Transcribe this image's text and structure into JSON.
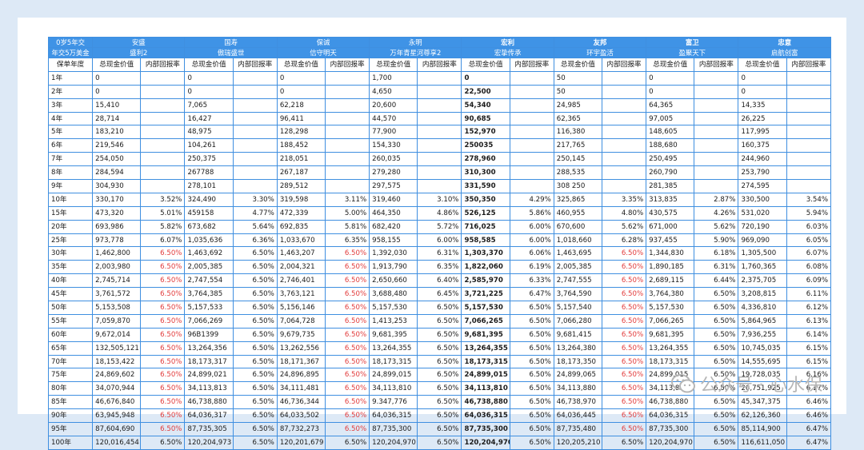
{
  "header": {
    "corner_line1": "0岁5年交",
    "corner_line2": "年交5万美金",
    "year_label": "保单年度",
    "metric_cash": "总现金价值",
    "metric_irr": "内部回报率",
    "companies": [
      {
        "company": "安盛",
        "product": "盛利2",
        "bold": false
      },
      {
        "company": "国寿",
        "product": "傲瑞盛世",
        "bold": false
      },
      {
        "company": "保诚",
        "product": "信守明天",
        "bold": false
      },
      {
        "company": "永明",
        "product": "万年青星河尊享2",
        "bold": false
      },
      {
        "company": "宏利",
        "product": "宏挚传承",
        "bold": true
      },
      {
        "company": "友邦",
        "product": "环宇盈活",
        "bold": true
      },
      {
        "company": "富卫",
        "product": "盈聚天下",
        "bold": true
      },
      {
        "company": "忠意",
        "product": "启航创富",
        "bold": true
      }
    ]
  },
  "rows": [
    {
      "year": "1年",
      "cells": [
        [
          "0",
          ""
        ],
        [
          "0",
          ""
        ],
        [
          "0",
          ""
        ],
        [
          "1,700",
          ""
        ],
        [
          "0",
          ""
        ],
        [
          "50",
          ""
        ],
        [
          "0",
          ""
        ],
        [
          "0",
          ""
        ]
      ]
    },
    {
      "year": "2年",
      "cells": [
        [
          "0",
          ""
        ],
        [
          "0",
          ""
        ],
        [
          "0",
          ""
        ],
        [
          "4,650",
          ""
        ],
        [
          "22,500",
          ""
        ],
        [
          "50",
          ""
        ],
        [
          "0",
          ""
        ],
        [
          "0",
          ""
        ]
      ]
    },
    {
      "year": "3年",
      "cells": [
        [
          "15,410",
          ""
        ],
        [
          "7,065",
          ""
        ],
        [
          "62,218",
          ""
        ],
        [
          "20,600",
          ""
        ],
        [
          "54,340",
          ""
        ],
        [
          "24,985",
          ""
        ],
        [
          "64,365",
          ""
        ],
        [
          "14,335",
          ""
        ]
      ]
    },
    {
      "year": "4年",
      "cells": [
        [
          "28,714",
          ""
        ],
        [
          "16,427",
          ""
        ],
        [
          "96,411",
          ""
        ],
        [
          "44,570",
          ""
        ],
        [
          "90,685",
          ""
        ],
        [
          "62,365",
          ""
        ],
        [
          "97,005",
          ""
        ],
        [
          "26,225",
          ""
        ]
      ]
    },
    {
      "year": "5年",
      "cells": [
        [
          "183,210",
          ""
        ],
        [
          "48,975",
          ""
        ],
        [
          "128,298",
          ""
        ],
        [
          "77,900",
          ""
        ],
        [
          "152,970",
          ""
        ],
        [
          "116,380",
          ""
        ],
        [
          "148,605",
          ""
        ],
        [
          "117,995",
          ""
        ]
      ]
    },
    {
      "year": "6年",
      "cells": [
        [
          "219,546",
          ""
        ],
        [
          "104,261",
          ""
        ],
        [
          "188,452",
          ""
        ],
        [
          "154,330",
          ""
        ],
        [
          "250035",
          ""
        ],
        [
          "217,765",
          ""
        ],
        [
          "188,680",
          ""
        ],
        [
          "160,375",
          ""
        ]
      ]
    },
    {
      "year": "7年",
      "cells": [
        [
          "254,050",
          ""
        ],
        [
          "250,375",
          ""
        ],
        [
          "218,051",
          ""
        ],
        [
          "260,035",
          ""
        ],
        [
          "278,960",
          ""
        ],
        [
          "250,145",
          ""
        ],
        [
          "250,495",
          ""
        ],
        [
          "244,960",
          ""
        ]
      ]
    },
    {
      "year": "8年",
      "cells": [
        [
          "284,594",
          ""
        ],
        [
          "267788",
          ""
        ],
        [
          "267,187",
          ""
        ],
        [
          "279,280",
          ""
        ],
        [
          "310,300",
          ""
        ],
        [
          "288,535",
          ""
        ],
        [
          "260,790",
          ""
        ],
        [
          "253,790",
          ""
        ]
      ]
    },
    {
      "year": "9年",
      "cells": [
        [
          "304,930",
          ""
        ],
        [
          "278,101",
          ""
        ],
        [
          "289,512",
          ""
        ],
        [
          "297,575",
          ""
        ],
        [
          "331,590",
          ""
        ],
        [
          "308 250",
          ""
        ],
        [
          "281,385",
          ""
        ],
        [
          "274,595",
          ""
        ]
      ]
    },
    {
      "year": "10年",
      "cells": [
        [
          "330,170",
          "3.52%"
        ],
        [
          "324,490",
          "3.30%"
        ],
        [
          "319,598",
          "3.11%"
        ],
        [
          "319,460",
          "3.10%"
        ],
        [
          "350,350",
          "4.29%"
        ],
        [
          "325,865",
          "3.35%"
        ],
        [
          "313,835",
          "2.87%"
        ],
        [
          "330,500",
          "3.54%"
        ]
      ]
    },
    {
      "year": "15年",
      "cells": [
        [
          "473,320",
          "5.01%"
        ],
        [
          "459158",
          "4.77%"
        ],
        [
          "472,339",
          "5.00%"
        ],
        [
          "464,350",
          "4.86%"
        ],
        [
          "526,125",
          "5.86%"
        ],
        [
          "460,955",
          "4.80%"
        ],
        [
          "430,575",
          "4.26%"
        ],
        [
          "531,020",
          "5.94%"
        ]
      ]
    },
    {
      "year": "20年",
      "cells": [
        [
          "693,986",
          "5.82%"
        ],
        [
          "673,682",
          "5.64%"
        ],
        [
          "692,835",
          "5.81%"
        ],
        [
          "682,420",
          "5.72%"
        ],
        [
          "716,025",
          "6.00%"
        ],
        [
          "670,600",
          "5.62%"
        ],
        [
          "671,000",
          "5.62%"
        ],
        [
          "720,190",
          "6.03%"
        ]
      ]
    },
    {
      "year": "25年",
      "cells": [
        [
          "973,778",
          "6.07%"
        ],
        [
          "1,035,636",
          "6.36%"
        ],
        [
          "1,033,670",
          "6.35%"
        ],
        [
          "958,155",
          "6.00%"
        ],
        [
          "958,585",
          "6.00%"
        ],
        [
          "1,018,660",
          "6.28%"
        ],
        [
          "937,455",
          "5.90%"
        ],
        [
          "969,090",
          "6.05%"
        ]
      ]
    },
    {
      "year": "30年",
      "cells": [
        [
          "1,462,800",
          "6.50%"
        ],
        [
          "1,463,692",
          "6.50%"
        ],
        [
          "1,463,207",
          "6.50%"
        ],
        [
          "1,392,030",
          "6.31%"
        ],
        [
          "1,303,370",
          "6.06%"
        ],
        [
          "1,463,695",
          "6.50%"
        ],
        [
          "1,344,830",
          "6.18%"
        ],
        [
          "1,305,500",
          "6.07%"
        ]
      ]
    },
    {
      "year": "35年",
      "cells": [
        [
          "2,003,980",
          "6.50%"
        ],
        [
          "2,005,385",
          "6.50%"
        ],
        [
          "2,004,321",
          "6.50%"
        ],
        [
          "1,913,790",
          "6.35%"
        ],
        [
          "1,822,060",
          "6.19%"
        ],
        [
          "2,005,385",
          "6.50%"
        ],
        [
          "1,890,185",
          "6.31%"
        ],
        [
          "1,760,365",
          "6.08%"
        ]
      ]
    },
    {
      "year": "40年",
      "cells": [
        [
          "2,745,714",
          "6.50%"
        ],
        [
          "2,747,554",
          "6.50%"
        ],
        [
          "2,746,401",
          "6.50%"
        ],
        [
          "2,650,660",
          "6.40%"
        ],
        [
          "2,585,970",
          "6.33%"
        ],
        [
          "2,747,555",
          "6.50%"
        ],
        [
          "2,689,115",
          "6.44%"
        ],
        [
          "2,375,705",
          "6.09%"
        ]
      ]
    },
    {
      "year": "45年",
      "cells": [
        [
          "3,761,572",
          "6.50%"
        ],
        [
          "3,764,385",
          "6.50%"
        ],
        [
          "3,763,121",
          "6.50%"
        ],
        [
          "3,688,480",
          "6.45%"
        ],
        [
          "3,721,225",
          "6.47%"
        ],
        [
          "3,764,590",
          "6.50%"
        ],
        [
          "3,764,380",
          "6.50%"
        ],
        [
          "3,208,815",
          "6.11%"
        ]
      ]
    },
    {
      "year": "50年",
      "cells": [
        [
          "5,153,508",
          "6.50%"
        ],
        [
          "5,157,533",
          "6.50%"
        ],
        [
          "5,156,146",
          "6.50%"
        ],
        [
          "5,157,530",
          "6.50%"
        ],
        [
          "5,157,530",
          "6.50%"
        ],
        [
          "5,157,540",
          "6.50%"
        ],
        [
          "5,157,530",
          "6.50%"
        ],
        [
          "4,336,810",
          "6.12%"
        ]
      ]
    },
    {
      "year": "55年",
      "cells": [
        [
          "7,059,870",
          "6.50%"
        ],
        [
          "7,066,269",
          "6.50%"
        ],
        [
          "7,064,728",
          "6.50%"
        ],
        [
          "1,413,253",
          "6.50%"
        ],
        [
          "7,066,265",
          "6.50%"
        ],
        [
          "7,066,280",
          "6.50%"
        ],
        [
          "7,066,265",
          "6.50%"
        ],
        [
          "5,864,965",
          "6.13%"
        ]
      ]
    },
    {
      "year": "60年",
      "cells": [
        [
          "9,672,014",
          "6.50%"
        ],
        [
          "96B1399",
          "6.50%"
        ],
        [
          "9,679,735",
          "6.50%"
        ],
        [
          "9,681,395",
          "6.50%"
        ],
        [
          "9,681,395",
          "6.50%"
        ],
        [
          "9,681,415",
          "6.50%"
        ],
        [
          "9,681,395",
          "6.50%"
        ],
        [
          "7,936,255",
          "6.14%"
        ]
      ]
    },
    {
      "year": "65年",
      "cells": [
        [
          "132,505,121",
          "6.50%"
        ],
        [
          "13,264,356",
          "6.50%"
        ],
        [
          "13,262,556",
          "6.50%"
        ],
        [
          "13,264,355",
          "6.50%"
        ],
        [
          "13,264,355",
          "6.50%"
        ],
        [
          "13,264,380",
          "6.50%"
        ],
        [
          "13,264,355",
          "6.50%"
        ],
        [
          "10,745,035",
          "6.15%"
        ]
      ]
    },
    {
      "year": "70年",
      "cells": [
        [
          "18,153,422",
          "6.50%"
        ],
        [
          "18,173,317",
          "6.50%"
        ],
        [
          "18,171,367",
          "6.50%"
        ],
        [
          "18,173,315",
          "6.50%"
        ],
        [
          "18,173,315",
          "6.50%"
        ],
        [
          "18,173,350",
          "6.50%"
        ],
        [
          "18,173,315",
          "6.50%"
        ],
        [
          "14,555,695",
          "6.15%"
        ]
      ]
    },
    {
      "year": "75年",
      "cells": [
        [
          "24,869,602",
          "6.50%"
        ],
        [
          "24,899,021",
          "6.50%"
        ],
        [
          "24,896,895",
          "6.50%"
        ],
        [
          "24,899,015",
          "6.50%"
        ],
        [
          "24,899,015",
          "6.50%"
        ],
        [
          "24,899,065",
          "6.50%"
        ],
        [
          "24,899,015",
          "6.50%"
        ],
        [
          "19,728,035",
          "6.16%"
        ]
      ]
    },
    {
      "year": "80年",
      "cells": [
        [
          "34,070,944",
          "6.50%"
        ],
        [
          "34,113,813",
          "6.50%"
        ],
        [
          "34,111,481",
          "6.50%"
        ],
        [
          "34,113,810",
          "6.50%"
        ],
        [
          "34,113,810",
          "6.50%"
        ],
        [
          "34,113,880",
          "6.50%"
        ],
        [
          "34,113,810",
          "6.50%"
        ],
        [
          "26,751,925",
          "6.17%"
        ]
      ]
    },
    {
      "year": "85年",
      "cells": [
        [
          "46,676,840",
          "6.50%"
        ],
        [
          "46,738,880",
          "6.50%"
        ],
        [
          "46,736,344",
          "6.50%"
        ],
        [
          "9.347,776",
          "6.50%"
        ],
        [
          "46,738,880",
          "6.50%"
        ],
        [
          "46,738,970",
          "6.50%"
        ],
        [
          "46,738,880",
          "6.50%"
        ],
        [
          "45,347,375",
          "6.46%"
        ]
      ]
    },
    {
      "year": "90年",
      "cells": [
        [
          "63,945,948",
          "6.50%"
        ],
        [
          "64,036,317",
          "6.50%"
        ],
        [
          "64,033,502",
          "6.50%"
        ],
        [
          "64,036,315",
          "6.50%"
        ],
        [
          "64,036,315",
          "6.50%"
        ],
        [
          "64,036,445",
          "6.50%"
        ],
        [
          "64,036,315",
          "6.50%"
        ],
        [
          "62,126,360",
          "6.46%"
        ]
      ]
    },
    {
      "year": "95年",
      "cells": [
        [
          "87,604,690",
          "6.50%"
        ],
        [
          "87,735,305",
          "6.50%"
        ],
        [
          "87,732,273",
          "6.50%"
        ],
        [
          "87,735,300",
          "6.50%"
        ],
        [
          "87,735,300",
          "6.50%"
        ],
        [
          "87,735,480",
          "6.50%"
        ],
        [
          "87,735,300",
          "6.50%"
        ],
        [
          "85,114,900",
          "6.47%"
        ]
      ]
    },
    {
      "year": "100年",
      "cells": [
        [
          "120,016,454",
          "6.50%"
        ],
        [
          "120,204,973",
          "6.50%"
        ],
        [
          "120,201,679",
          "6.50%"
        ],
        [
          "120,204,970",
          "6.50%"
        ],
        [
          "120,204,970",
          "6.50%"
        ],
        [
          "120,205,210",
          "6.50%"
        ],
        [
          "120,204,970",
          "6.50%"
        ],
        [
          "116,611,050",
          "6.47%"
        ]
      ]
    }
  ],
  "red_cells": [
    "13.0.1",
    "14.0.1",
    "15.0.1",
    "16.0.1",
    "17.0.1",
    "18.0.1",
    "19.0.1",
    "20.0.1",
    "21.0.1",
    "22.0.1",
    "23.0.1",
    "24.0.1",
    "25.0.1",
    "26.0.1",
    "13.2.1",
    "14.2.1",
    "15.2.1",
    "16.2.1",
    "17.2.1",
    "18.2.1",
    "19.2.1",
    "20.2.1",
    "21.2.1",
    "22.2.1",
    "23.2.1",
    "24.2.1",
    "25.2.1",
    "26.2.1",
    "13.5.1",
    "14.5.1",
    "15.5.1",
    "16.5.1",
    "17.5.1",
    "18.5.1",
    "19.5.1",
    "20.5.1",
    "21.5.1",
    "22.5.1",
    "23.5.1",
    "24.5.1",
    "25.5.1",
    "26.5.1"
  ],
  "bold_cash_columns": [
    4
  ],
  "watermark": "公众号 · 心水保",
  "colors": {
    "header_bg": "#3f93e6",
    "border": "#3f8fe0",
    "highlight": "#e23b3b",
    "page_bg": "#dde9f6"
  }
}
